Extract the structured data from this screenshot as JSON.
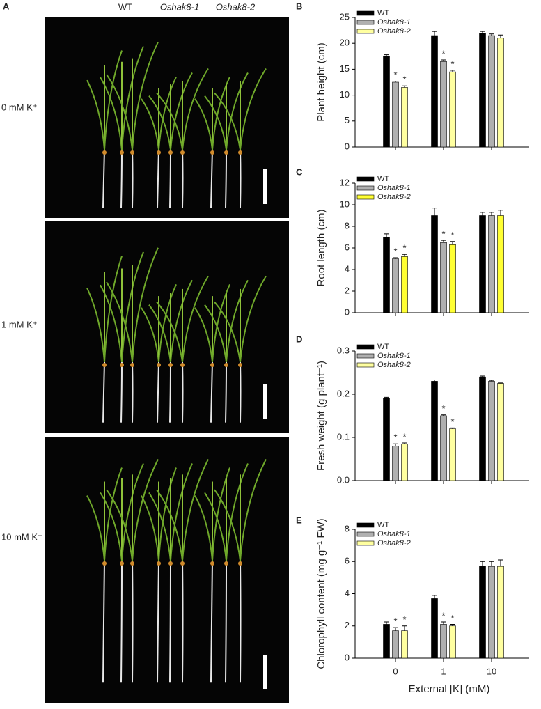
{
  "panel_a": {
    "panel": "A",
    "columns": [
      "WT",
      "Oshak8-1",
      "Oshak8-2"
    ],
    "rows": [
      "0 mM K⁺",
      "1 mM K⁺",
      "10 mM K⁺"
    ]
  },
  "chart_data": [
    {
      "type": "bar",
      "panel": "B",
      "ylabel": "Plant height (cm)",
      "categories": [
        null,
        null,
        null
      ],
      "ylim": [
        0,
        25
      ],
      "yticks": [
        0,
        5,
        10,
        15,
        20,
        25
      ],
      "legend": "upper left",
      "series": [
        {
          "name": "WT",
          "color": "#000000",
          "values": [
            17.5,
            21.5,
            22
          ],
          "errors": [
            0.3,
            0.8,
            0.3
          ],
          "significance": [
            null,
            null,
            null
          ]
        },
        {
          "name": "Oshak8-1",
          "color": "#b0b0b0",
          "values": [
            12.5,
            16.5,
            21.5
          ],
          "errors": [
            0.2,
            0.3,
            0.3
          ],
          "significance": [
            "*",
            "*",
            null
          ]
        },
        {
          "name": "Oshak8-2",
          "color": "#ffffa0",
          "values": [
            11.5,
            14.5,
            21
          ],
          "errors": [
            0.3,
            0.3,
            0.6
          ],
          "significance": [
            "*",
            "*",
            null
          ]
        }
      ]
    },
    {
      "type": "bar",
      "panel": "C",
      "ylabel": "Root length (cm)",
      "categories": [
        null,
        null,
        null
      ],
      "ylim": [
        0,
        12
      ],
      "yticks": [
        0,
        2,
        4,
        6,
        8,
        10,
        12
      ],
      "legend": "upper left",
      "series": [
        {
          "name": "WT",
          "color": "#000000",
          "values": [
            7.0,
            9.0,
            9.0
          ],
          "errors": [
            0.3,
            0.7,
            0.3
          ],
          "significance": [
            null,
            null,
            null
          ]
        },
        {
          "name": "Oshak8-1",
          "color": "#b0b0b0",
          "values": [
            5.0,
            6.5,
            9.0
          ],
          "errors": [
            0.1,
            0.2,
            0.3
          ],
          "significance": [
            "*",
            "*",
            null
          ]
        },
        {
          "name": "Oshak8-2",
          "color": "#ffff33",
          "values": [
            5.2,
            6.3,
            9.0
          ],
          "errors": [
            0.2,
            0.3,
            0.5
          ],
          "significance": [
            "*",
            "*",
            null
          ]
        }
      ]
    },
    {
      "type": "bar",
      "panel": "D",
      "ylabel": "Fresh weight (g plant⁻¹)",
      "categories": [
        null,
        null,
        null
      ],
      "ylim": [
        0,
        0.3
      ],
      "yticks": [
        {
          "value": 0,
          "label": "0.0"
        },
        0.1,
        0.2,
        0.3
      ],
      "legend": "upper left",
      "series": [
        {
          "name": "WT",
          "color": "#000000",
          "values": [
            0.19,
            0.23,
            0.24
          ],
          "errors": [
            0.003,
            0.003,
            0.002
          ],
          "significance": [
            null,
            null,
            null
          ]
        },
        {
          "name": "Oshak8-1",
          "color": "#b0b0b0",
          "values": [
            0.08,
            0.15,
            0.23
          ],
          "errors": [
            0.005,
            0.002,
            0.002
          ],
          "significance": [
            "*",
            "*",
            null
          ]
        },
        {
          "name": "Oshak8-2",
          "color": "#ffffa0",
          "values": [
            0.085,
            0.12,
            0.225
          ],
          "errors": [
            0.002,
            0.002,
            0.001
          ],
          "significance": [
            "*",
            "*",
            null
          ]
        }
      ]
    },
    {
      "type": "bar",
      "panel": "E",
      "ylabel": "Chlorophyll content (mg g⁻¹ FW)",
      "xlabel": "External [K] (mM)",
      "categories": [
        "0",
        "1",
        "10"
      ],
      "ylim": [
        0,
        8
      ],
      "yticks": [
        0,
        2,
        4,
        6,
        8
      ],
      "legend": "upper left",
      "series": [
        {
          "name": "WT",
          "color": "#000000",
          "values": [
            2.1,
            3.7,
            5.7
          ],
          "errors": [
            0.15,
            0.2,
            0.3
          ],
          "significance": [
            null,
            null,
            null
          ]
        },
        {
          "name": "Oshak8-1",
          "color": "#b0b0b0",
          "values": [
            1.7,
            2.1,
            5.7
          ],
          "errors": [
            0.2,
            0.15,
            0.3
          ],
          "significance": [
            "*",
            "*",
            null
          ]
        },
        {
          "name": "Oshak8-2",
          "color": "#ffffa0",
          "values": [
            1.7,
            2.0,
            5.7
          ],
          "errors": [
            0.3,
            0.1,
            0.4
          ],
          "significance": [
            "*",
            "*",
            null
          ]
        }
      ]
    }
  ]
}
